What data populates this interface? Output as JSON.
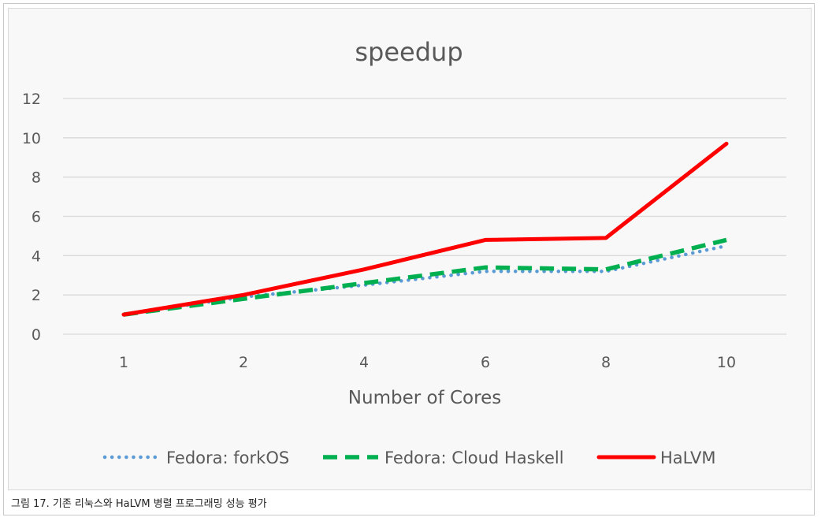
{
  "caption": "그림 17. 기존 리눅스와 HaLVM 병렬 프로그래밍 성능 평가",
  "chart_data": {
    "type": "line",
    "title": "speedup",
    "xlabel": "Number of Cores",
    "ylabel": "",
    "categories": [
      "1",
      "2",
      "4",
      "6",
      "8",
      "10"
    ],
    "ylim": [
      0,
      12
    ],
    "yticks": [
      0,
      2,
      4,
      6,
      8,
      10,
      12
    ],
    "grid": true,
    "legend_position": "bottom",
    "series": [
      {
        "name": "Fedora: forkOS",
        "values": [
          1.0,
          1.9,
          2.5,
          3.2,
          3.2,
          4.5
        ],
        "color": "#5b9bd5",
        "style": "dotted"
      },
      {
        "name": "Fedora: Cloud Haskell",
        "values": [
          1.0,
          1.8,
          2.6,
          3.4,
          3.3,
          4.8
        ],
        "color": "#00b050",
        "style": "dashed"
      },
      {
        "name": "HaLVM",
        "values": [
          1.0,
          2.0,
          3.3,
          4.8,
          4.9,
          9.7
        ],
        "color": "#ff0000",
        "style": "solid"
      }
    ]
  }
}
